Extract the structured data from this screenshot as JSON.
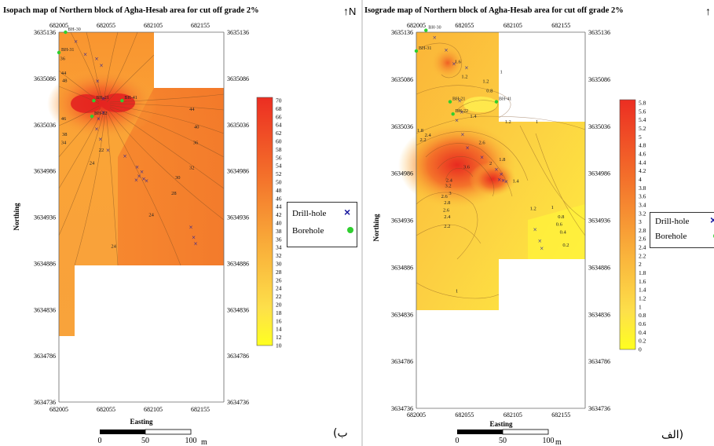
{
  "panels": {
    "left": {
      "title": "Isopach map of Northern block of Agha-Hesab area for cut off grade 2%",
      "panel_label": "(ب",
      "north": "N"
    },
    "right": {
      "title": "Isograde map of Northern block of Agha-Hesab area for cut off grade 2%",
      "panel_label": "الف)",
      "north": "N"
    }
  },
  "axes": {
    "xlabel": "Easting",
    "ylabel": "Northing",
    "x_ticks": [
      "682005",
      "682055",
      "682105",
      "682155"
    ],
    "y_ticks": [
      "3635136",
      "3635086",
      "3635036",
      "3634986",
      "3634936",
      "3634886",
      "3634836",
      "3634786",
      "3634736"
    ]
  },
  "scale_bar": {
    "labels": [
      "0",
      "50",
      "100"
    ],
    "unit": "m"
  },
  "legend": {
    "drill_hole": "Drill-hole",
    "borehole": "Borehole"
  },
  "colors": {
    "low": "#ffff20",
    "mid": "#ffb030",
    "high": "#ec2e22",
    "drill_hole": "#1a1aa0",
    "borehole": "#2fcf2f"
  },
  "chart_data": [
    {
      "type": "heatmap",
      "title": "Isopach map of Northern block of Agha-Hesab area for cut off grade 2%",
      "xlabel": "Easting",
      "ylabel": "Northing",
      "xlim": [
        682005,
        682180
      ],
      "ylim": [
        3634736,
        3635136
      ],
      "colorbar": {
        "ticks": [
          "70",
          "68",
          "66",
          "64",
          "62",
          "60",
          "58",
          "56",
          "54",
          "52",
          "50",
          "48",
          "46",
          "44",
          "42",
          "40",
          "38",
          "36",
          "34",
          "32",
          "30",
          "28",
          "26",
          "24",
          "22",
          "20",
          "18",
          "16",
          "14",
          "12",
          "10"
        ],
        "range": [
          10,
          70
        ]
      },
      "boreholes": [
        {
          "label": "BH-30",
          "x": 682012,
          "y": 3635136
        },
        {
          "label": "BH-31",
          "x": 682005,
          "y": 3635114
        },
        {
          "label": "BH-21",
          "x": 682042,
          "y": 3635062
        },
        {
          "label": "BH-41",
          "x": 682072,
          "y": 3635062
        },
        {
          "label": "BH-22",
          "x": 682040,
          "y": 3635045
        }
      ],
      "drill_holes": [
        {
          "x": 682023,
          "y": 3635126
        },
        {
          "x": 682033,
          "y": 3635112
        },
        {
          "x": 682045,
          "y": 3635107
        },
        {
          "x": 682050,
          "y": 3635100
        },
        {
          "x": 682046,
          "y": 3635083
        },
        {
          "x": 682052,
          "y": 3635064
        },
        {
          "x": 682052,
          "y": 3635049
        },
        {
          "x": 682047,
          "y": 3635042
        },
        {
          "x": 682045,
          "y": 3635031
        },
        {
          "x": 682049,
          "y": 3635020
        },
        {
          "x": 682057,
          "y": 3635008
        },
        {
          "x": 682075,
          "y": 3635002
        },
        {
          "x": 682088,
          "y": 3634990
        },
        {
          "x": 682093,
          "y": 3634985
        },
        {
          "x": 682090,
          "y": 3634980
        },
        {
          "x": 682087,
          "y": 3634976
        },
        {
          "x": 682095,
          "y": 3634977
        },
        {
          "x": 682098,
          "y": 3634975
        },
        {
          "x": 682145,
          "y": 3634925
        },
        {
          "x": 682148,
          "y": 3634914
        },
        {
          "x": 682150,
          "y": 3634907
        }
      ],
      "contour_labels": [
        {
          "text": "36",
          "x": 682009,
          "y": 3635106
        },
        {
          "text": "44",
          "x": 682010,
          "y": 3635090
        },
        {
          "text": "48",
          "x": 682011,
          "y": 3635082
        },
        {
          "text": "46",
          "x": 682010,
          "y": 3635041
        },
        {
          "text": "38",
          "x": 682011,
          "y": 3635024
        },
        {
          "text": "34",
          "x": 682010,
          "y": 3635015
        },
        {
          "text": "44",
          "x": 682146,
          "y": 3635051
        },
        {
          "text": "40",
          "x": 682151,
          "y": 3635032
        },
        {
          "text": "36",
          "x": 682150,
          "y": 3635015
        },
        {
          "text": "32",
          "x": 682146,
          "y": 3634988
        },
        {
          "text": "30",
          "x": 682131,
          "y": 3634977
        },
        {
          "text": "28",
          "x": 682127,
          "y": 3634960
        },
        {
          "text": "24",
          "x": 682103,
          "y": 3634937
        },
        {
          "text": "24",
          "x": 682040,
          "y": 3634993
        },
        {
          "text": "22",
          "x": 682050,
          "y": 3635007
        },
        {
          "text": "24",
          "x": 682063,
          "y": 3634903
        }
      ]
    },
    {
      "type": "heatmap",
      "title": "Isograde map of Northern block of Agha-Hesab area for cut off grade 2%",
      "xlabel": "Easting",
      "ylabel": "Northing",
      "xlim": [
        682005,
        682180
      ],
      "ylim": [
        3634736,
        3635136
      ],
      "colorbar": {
        "ticks": [
          "5.8",
          "5.6",
          "5.4",
          "5.2",
          "5",
          "4.8",
          "4.6",
          "4.4",
          "4.2",
          "4",
          "3.8",
          "3.6",
          "3.4",
          "3.2",
          "3",
          "2.8",
          "2.6",
          "2.4",
          "2.2",
          "2",
          "1.8",
          "1.6",
          "1.4",
          "1.2",
          "1",
          "0.8",
          "0.6",
          "0.4",
          "0.2",
          "0"
        ],
        "range": [
          0,
          5.8
        ]
      },
      "boreholes": [
        {
          "label": "BH-30",
          "x": 682015,
          "y": 3635138
        },
        {
          "label": "BH-31",
          "x": 682005,
          "y": 3635116
        },
        {
          "label": "BH-21",
          "x": 682040,
          "y": 3635062
        },
        {
          "label": "BH-41",
          "x": 682088,
          "y": 3635062
        },
        {
          "label": "BH-22",
          "x": 682043,
          "y": 3635049
        }
      ],
      "drill_holes": [
        {
          "x": 682024,
          "y": 3635130
        },
        {
          "x": 682036,
          "y": 3635117
        },
        {
          "x": 682044,
          "y": 3635102
        },
        {
          "x": 682057,
          "y": 3635098
        },
        {
          "x": 682050,
          "y": 3635063
        },
        {
          "x": 682052,
          "y": 3635051
        },
        {
          "x": 682047,
          "y": 3635042
        },
        {
          "x": 682053,
          "y": 3635027
        },
        {
          "x": 682058,
          "y": 3635013
        },
        {
          "x": 682073,
          "y": 3635003
        },
        {
          "x": 682088,
          "y": 3634990
        },
        {
          "x": 682093,
          "y": 3634985
        },
        {
          "x": 682091,
          "y": 3634979
        },
        {
          "x": 682095,
          "y": 3634978
        },
        {
          "x": 682098,
          "y": 3634977
        },
        {
          "x": 682128,
          "y": 3634926
        },
        {
          "x": 682133,
          "y": 3634914
        },
        {
          "x": 682135,
          "y": 3634906
        }
      ],
      "contour_labels": [
        {
          "text": "1.6",
          "x": 682048,
          "y": 3635103
        },
        {
          "text": "1.2",
          "x": 682055,
          "y": 3635087
        },
        {
          "text": "1.2",
          "x": 682077,
          "y": 3635082
        },
        {
          "text": "1",
          "x": 682093,
          "y": 3635092
        },
        {
          "text": "0.8",
          "x": 682081,
          "y": 3635072
        },
        {
          "text": "1.4",
          "x": 682064,
          "y": 3635045
        },
        {
          "text": "1.2",
          "x": 682100,
          "y": 3635039
        },
        {
          "text": "1",
          "x": 682130,
          "y": 3635039
        },
        {
          "text": "1.8",
          "x": 682009,
          "y": 3635030
        },
        {
          "text": "2.2",
          "x": 682012,
          "y": 3635020
        },
        {
          "text": "2.4",
          "x": 682017,
          "y": 3635025
        },
        {
          "text": "2.6",
          "x": 682073,
          "y": 3635017
        },
        {
          "text": "2",
          "x": 682082,
          "y": 3634995
        },
        {
          "text": "3.6",
          "x": 682057,
          "y": 3634991
        },
        {
          "text": "1.8",
          "x": 682094,
          "y": 3634999
        },
        {
          "text": "1.4",
          "x": 682108,
          "y": 3634976
        },
        {
          "text": "2.4",
          "x": 682039,
          "y": 3634977
        },
        {
          "text": "3.2",
          "x": 682038,
          "y": 3634971
        },
        {
          "text": "2.6",
          "x": 682034,
          "y": 3634960
        },
        {
          "text": "3",
          "x": 682040,
          "y": 3634963
        },
        {
          "text": "2.8",
          "x": 682037,
          "y": 3634953
        },
        {
          "text": "2.6",
          "x": 682036,
          "y": 3634945
        },
        {
          "text": "2.4",
          "x": 682037,
          "y": 3634938
        },
        {
          "text": "2.2",
          "x": 682037,
          "y": 3634928
        },
        {
          "text": "1.2",
          "x": 682126,
          "y": 3634947
        },
        {
          "text": "1",
          "x": 682146,
          "y": 3634948
        },
        {
          "text": "0.8",
          "x": 682155,
          "y": 3634938
        },
        {
          "text": "0.6",
          "x": 682153,
          "y": 3634930
        },
        {
          "text": "0.4",
          "x": 682157,
          "y": 3634922
        },
        {
          "text": "0.2",
          "x": 682160,
          "y": 3634908
        },
        {
          "text": "1",
          "x": 682047,
          "y": 3634859
        }
      ]
    }
  ]
}
